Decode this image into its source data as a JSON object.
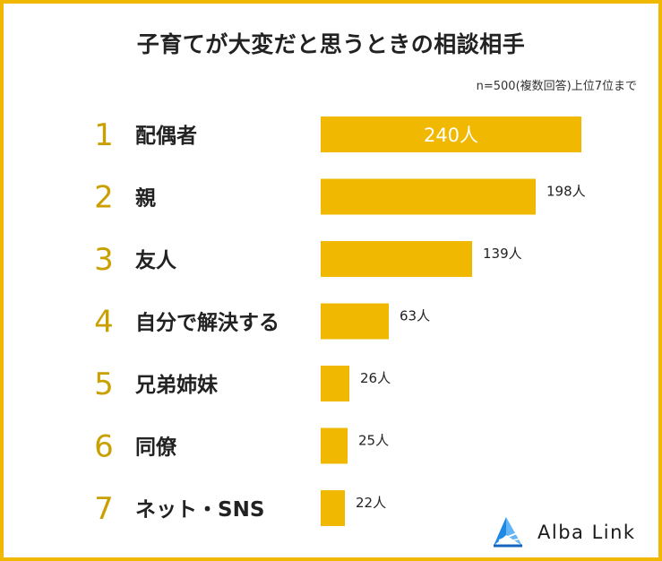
{
  "title": "子育てが大変だと思うときの相談相手",
  "subtitle": "n=500(複数回答)上位7位まで",
  "colors": {
    "accent": "#F0B800",
    "text": "#222222",
    "rank": "#C9A000",
    "logo_blue": "#1E88E5"
  },
  "logo": {
    "text": "Alba Link",
    "icon": "alba-link-logo-icon"
  },
  "chart_data": {
    "type": "bar",
    "orientation": "horizontal",
    "ranks": [
      "1",
      "2",
      "3",
      "4",
      "5",
      "6",
      "7"
    ],
    "categories": [
      "配偶者",
      "親",
      "友人",
      "自分で解決する",
      "兄弟姉妹",
      "同僚",
      "ネット・SNS"
    ],
    "values": [
      240,
      198,
      139,
      63,
      26,
      25,
      22
    ],
    "value_labels": [
      "240人",
      "198人",
      "139人",
      "63人",
      "26人",
      "25人",
      "22人"
    ],
    "unit": "人",
    "xlim": [
      0,
      240
    ]
  }
}
